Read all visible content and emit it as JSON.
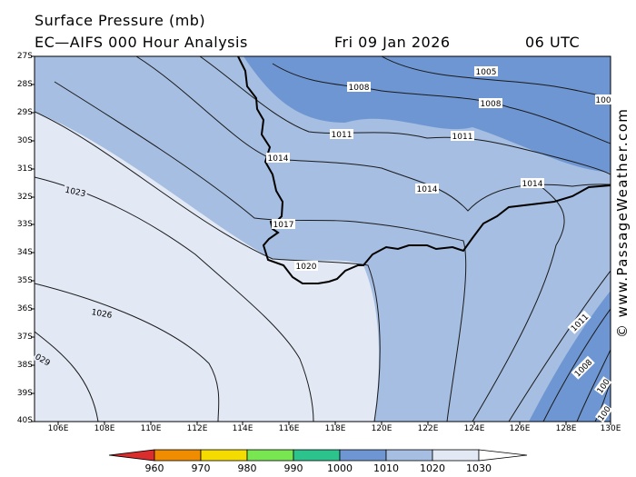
{
  "header": {
    "title_line1": "Surface Pressure (mb)",
    "title_line2": "EC—AIFS 000 Hour Analysis",
    "date": "Fri 09 Jan 2026",
    "time": "06 UTC"
  },
  "credit": "© www.PassageWeather.com",
  "map": {
    "lat_labels": [
      "27S",
      "28S",
      "29S",
      "30S",
      "31S",
      "32S",
      "33S",
      "34S",
      "35S",
      "36S",
      "37S",
      "38S",
      "39S",
      "40S"
    ],
    "lon_labels": [
      "106E",
      "108E",
      "110E",
      "112E",
      "114E",
      "116E",
      "118E",
      "120E",
      "122E",
      "124E",
      "126E",
      "128E",
      "130E"
    ],
    "isobar_labels": [
      "1005",
      "1008",
      "1008",
      "1011",
      "1011",
      "1014",
      "1014",
      "1014",
      "1017",
      "1020",
      "1023",
      "1026",
      "029",
      "1011",
      "1008",
      "100",
      "100",
      "100"
    ]
  },
  "legend": {
    "values": [
      "960",
      "970",
      "980",
      "990",
      "1000",
      "1010",
      "1020",
      "1030"
    ],
    "colors": [
      "#dc2d2d",
      "#f08c00",
      "#f5dc00",
      "#78e650",
      "#2dc38c",
      "#6e96d2",
      "#a5bee1",
      "#e2e8f4",
      "#ffffff"
    ]
  }
}
